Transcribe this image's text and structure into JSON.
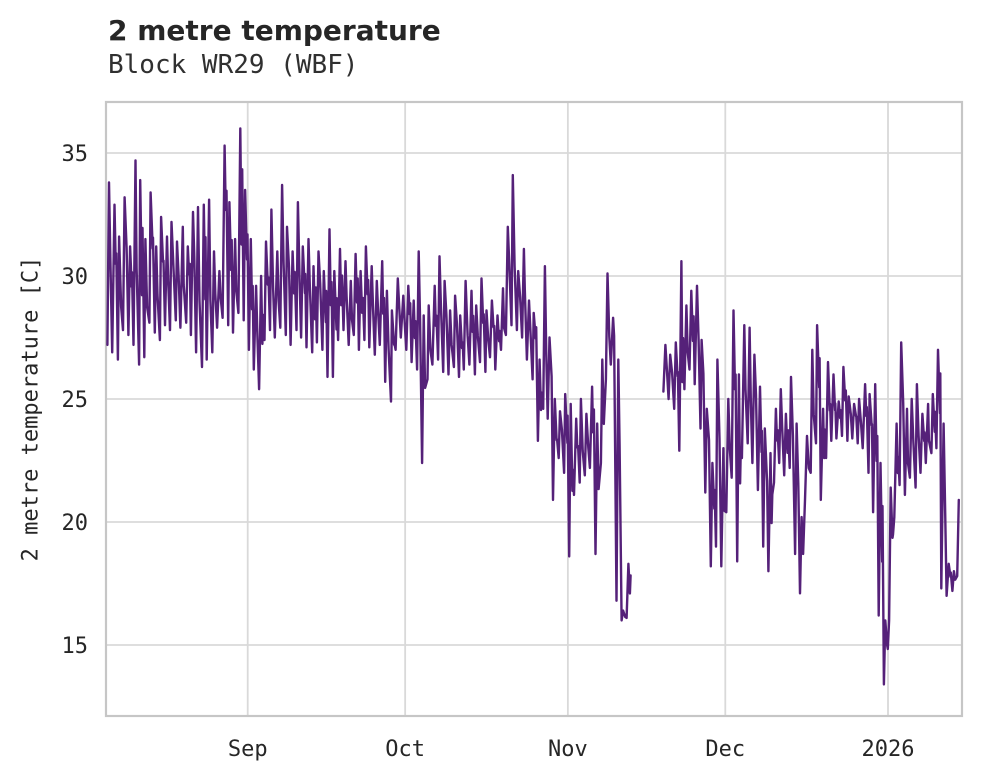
{
  "header": {
    "title": "2 metre temperature",
    "subtitle": "Block WR29 (WBF)"
  },
  "chart_data": {
    "type": "line",
    "title": "2 metre temperature",
    "subtitle": "Block WR29 (WBF)",
    "xlabel": "",
    "ylabel": "2 metre temperature [C]",
    "unit": "C",
    "grid": true,
    "legend": "none",
    "line_color": "#552179",
    "grid_color": "#d9d9d9",
    "border_color": "#c6c6c6",
    "text_color": "#262626",
    "background": "#ffffff",
    "y_ticks": [
      15,
      20,
      25,
      30,
      35
    ],
    "ylim": [
      12.1,
      37.1
    ],
    "x_ticks": [
      {
        "label": "Sep",
        "day": 27
      },
      {
        "label": "Oct",
        "day": 57
      },
      {
        "label": "Nov",
        "day": 88
      },
      {
        "label": "Dec",
        "day": 118
      },
      {
        "label": "2026",
        "day": 149
      }
    ],
    "x_start_label_est": "Aug 05",
    "x_end_label_est": "Jan 14",
    "xlim_days": [
      0,
      163
    ],
    "value_max_est": 36.0,
    "value_min_est": 13.4,
    "missing_days": [
      100,
      101,
      102,
      103,
      104,
      105
    ],
    "series": [
      {
        "name": "2 metre temperature",
        "note": "daily [dayIndex, max, min] envelope estimated from plot; day 0 = Aug 05",
        "daily": [
          [
            0,
            33.8,
            27.2
          ],
          [
            1,
            32.9,
            26.9
          ],
          [
            2,
            31.6,
            26.6
          ],
          [
            3,
            33.2,
            27.8
          ],
          [
            4,
            31.2,
            27.6
          ],
          [
            5,
            34.7,
            27.2
          ],
          [
            6,
            33.9,
            26.4
          ],
          [
            7,
            31.5,
            26.7
          ],
          [
            8,
            33.4,
            28.1
          ],
          [
            9,
            31.2,
            27.7
          ],
          [
            10,
            32.4,
            27.4
          ],
          [
            11,
            31.6,
            28.0
          ],
          [
            12,
            32.2,
            27.8
          ],
          [
            13,
            31.4,
            28.2
          ],
          [
            14,
            32.0,
            27.9
          ],
          [
            15,
            31.2,
            28.1
          ],
          [
            16,
            32.6,
            27.6
          ],
          [
            17,
            32.8,
            26.9
          ],
          [
            18,
            32.9,
            26.3
          ],
          [
            19,
            33.1,
            26.6
          ],
          [
            20,
            31.0,
            26.9
          ],
          [
            21,
            30.2,
            27.9
          ],
          [
            22,
            35.3,
            28.3
          ],
          [
            23,
            33.0,
            28.0
          ],
          [
            24,
            31.5,
            27.7
          ],
          [
            25,
            36.0,
            28.5
          ],
          [
            26,
            33.5,
            28.2
          ],
          [
            27,
            31.5,
            27.0
          ],
          [
            28,
            29.6,
            26.2
          ],
          [
            29,
            30.0,
            25.4
          ],
          [
            30,
            31.4,
            27.4
          ],
          [
            31,
            32.7,
            27.8
          ],
          [
            32,
            31.0,
            27.5
          ],
          [
            33,
            33.7,
            27.9
          ],
          [
            34,
            32.0,
            27.6
          ],
          [
            35,
            31.0,
            27.2
          ],
          [
            36,
            33.0,
            27.8
          ],
          [
            37,
            31.2,
            27.5
          ],
          [
            38,
            31.5,
            27.1
          ],
          [
            39,
            30.4,
            26.9
          ],
          [
            40,
            31.0,
            27.3
          ],
          [
            41,
            30.2,
            27.0
          ],
          [
            42,
            31.9,
            25.9
          ],
          [
            43,
            30.2,
            25.9
          ],
          [
            44,
            31.1,
            27.4
          ],
          [
            45,
            30.6,
            27.8
          ],
          [
            46,
            29.8,
            27.2
          ],
          [
            47,
            30.9,
            27.6
          ],
          [
            48,
            30.2,
            27.0
          ],
          [
            49,
            31.2,
            27.4
          ],
          [
            50,
            30.4,
            27.1
          ],
          [
            51,
            29.8,
            26.8
          ],
          [
            52,
            30.6,
            27.2
          ],
          [
            53,
            29.4,
            25.7
          ],
          [
            54,
            28.6,
            24.9
          ],
          [
            55,
            29.9,
            27.0
          ],
          [
            56,
            29.2,
            27.5
          ],
          [
            57,
            29.6,
            27.0
          ],
          [
            58,
            29.0,
            26.5
          ],
          [
            59,
            31.0,
            26.2
          ],
          [
            60,
            28.4,
            22.4
          ],
          [
            61,
            28.8,
            25.8
          ],
          [
            62,
            29.6,
            26.4
          ],
          [
            63,
            30.8,
            26.6
          ],
          [
            64,
            29.8,
            26.1
          ],
          [
            65,
            28.6,
            26.0
          ],
          [
            66,
            29.2,
            26.3
          ],
          [
            67,
            28.4,
            25.9
          ],
          [
            68,
            29.8,
            26.2
          ],
          [
            69,
            29.4,
            26.4
          ],
          [
            70,
            28.8,
            26.0
          ],
          [
            71,
            29.9,
            26.5
          ],
          [
            72,
            28.6,
            26.1
          ],
          [
            73,
            29.0,
            26.7
          ],
          [
            74,
            28.4,
            26.2
          ],
          [
            75,
            29.5,
            27.0
          ],
          [
            76,
            32.0,
            27.6
          ],
          [
            77,
            34.1,
            28.0
          ],
          [
            78,
            30.2,
            27.8
          ],
          [
            79,
            31.1,
            27.5
          ],
          [
            80,
            29.0,
            26.6
          ],
          [
            81,
            28.5,
            25.8
          ],
          [
            82,
            26.6,
            23.3
          ],
          [
            83,
            30.4,
            24.6
          ],
          [
            84,
            27.5,
            24.2
          ],
          [
            85,
            25.0,
            20.9
          ],
          [
            86,
            24.5,
            22.6
          ],
          [
            87,
            25.2,
            22.0
          ],
          [
            88,
            24.8,
            18.6
          ],
          [
            89,
            24.2,
            21.1
          ],
          [
            90,
            25.0,
            21.6
          ],
          [
            91,
            24.4,
            21.9
          ],
          [
            92,
            25.5,
            22.2
          ],
          [
            93,
            24.0,
            18.7
          ],
          [
            94,
            26.6,
            22.4
          ],
          [
            95,
            30.1,
            25.8
          ],
          [
            96,
            28.3,
            26.4
          ],
          [
            97,
            26.6,
            16.8
          ],
          [
            98,
            16.4,
            16.0
          ],
          [
            99,
            18.3,
            16.1
          ],
          [
            106,
            27.2,
            25.3
          ],
          [
            107,
            26.8,
            25.0
          ],
          [
            108,
            27.3,
            24.6
          ],
          [
            109,
            30.6,
            22.9
          ],
          [
            110,
            28.8,
            25.4
          ],
          [
            111,
            29.4,
            26.2
          ],
          [
            112,
            29.6,
            25.6
          ],
          [
            113,
            27.4,
            23.8
          ],
          [
            114,
            24.6,
            21.2
          ],
          [
            115,
            22.4,
            18.2
          ],
          [
            116,
            26.6,
            19.0
          ],
          [
            117,
            23.0,
            18.2
          ],
          [
            118,
            25.0,
            20.4
          ],
          [
            119,
            28.6,
            21.8
          ],
          [
            120,
            26.0,
            18.4
          ],
          [
            121,
            28.0,
            22.6
          ],
          [
            122,
            27.9,
            23.2
          ],
          [
            123,
            26.8,
            22.4
          ],
          [
            124,
            25.5,
            21.3
          ],
          [
            125,
            23.8,
            19.0
          ],
          [
            126,
            22.8,
            18.0
          ],
          [
            127,
            24.6,
            21.6
          ],
          [
            128,
            25.4,
            22.4
          ],
          [
            129,
            24.4,
            21.9
          ],
          [
            130,
            25.9,
            22.2
          ],
          [
            131,
            24.0,
            18.7
          ],
          [
            132,
            20.2,
            17.1
          ],
          [
            133,
            23.5,
            20.9
          ],
          [
            134,
            27.0,
            22.0
          ],
          [
            135,
            28.0,
            23.2
          ],
          [
            136,
            24.6,
            20.9
          ],
          [
            137,
            26.5,
            22.6
          ],
          [
            138,
            26.0,
            23.3
          ],
          [
            139,
            24.9,
            23.4
          ],
          [
            140,
            26.3,
            23.5
          ],
          [
            141,
            25.1,
            23.3
          ],
          [
            142,
            24.8,
            23.4
          ],
          [
            143,
            25.0,
            23.2
          ],
          [
            144,
            25.6,
            23.0
          ],
          [
            145,
            25.2,
            22.0
          ],
          [
            146,
            25.6,
            20.4
          ],
          [
            147,
            22.4,
            16.2
          ],
          [
            148,
            16.0,
            13.4
          ],
          [
            149,
            21.4,
            16.0
          ],
          [
            150,
            24.0,
            20.2
          ],
          [
            151,
            27.3,
            21.5
          ],
          [
            152,
            24.6,
            21.1
          ],
          [
            153,
            25.0,
            21.8
          ],
          [
            154,
            25.6,
            21.4
          ],
          [
            155,
            24.4,
            22.0
          ],
          [
            156,
            24.8,
            22.4
          ],
          [
            157,
            25.2,
            22.8
          ],
          [
            158,
            27.0,
            23.0
          ],
          [
            159,
            24.0,
            17.3
          ],
          [
            160,
            18.3,
            17.0
          ],
          [
            161,
            18.0,
            17.2
          ],
          [
            162,
            20.9,
            17.8
          ]
        ]
      }
    ]
  }
}
